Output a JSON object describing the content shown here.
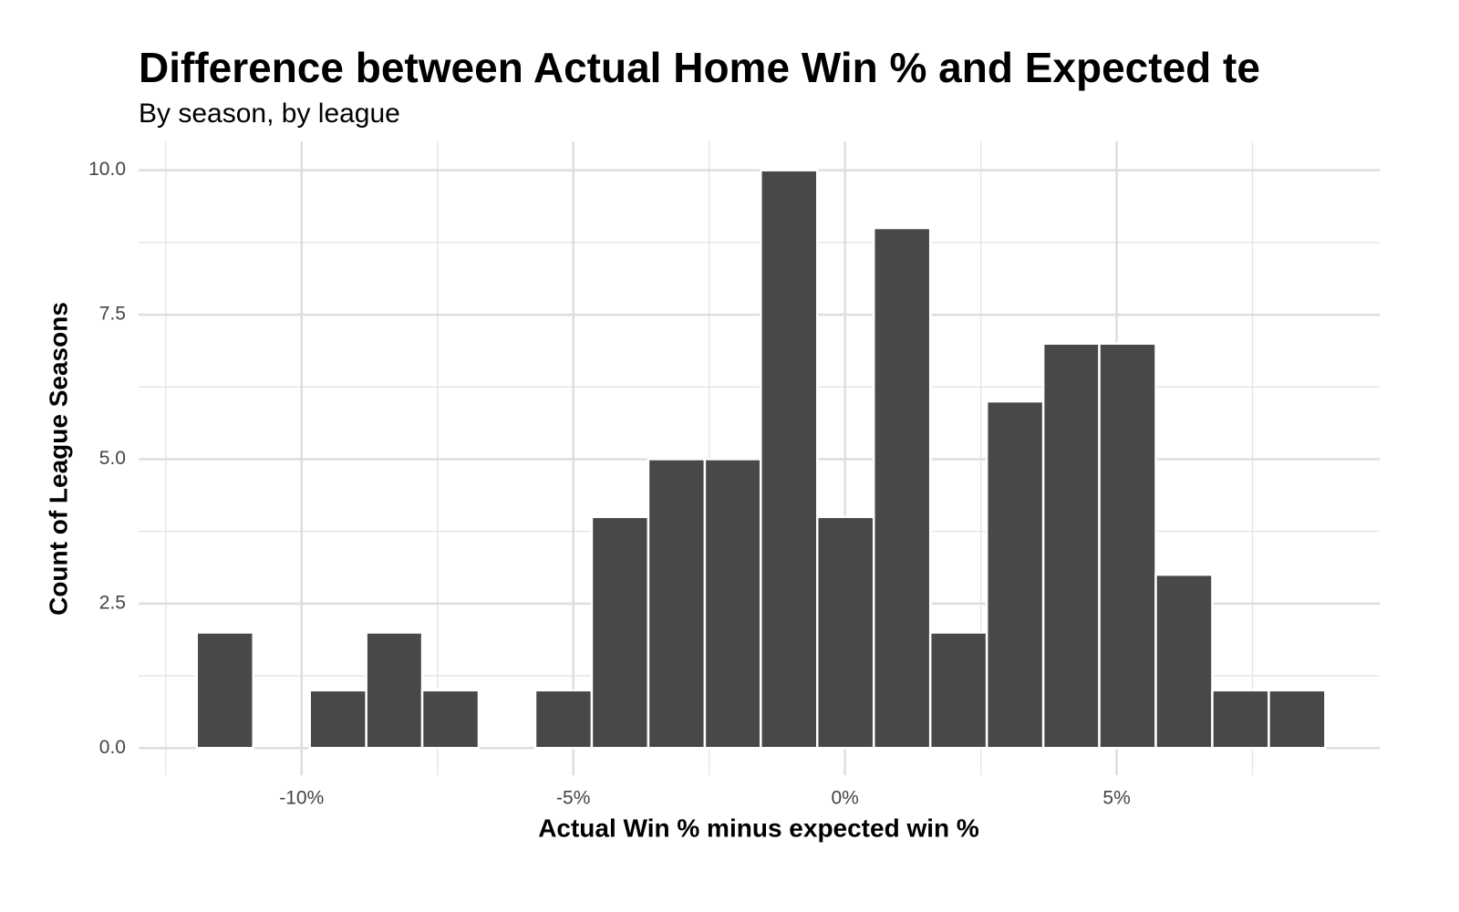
{
  "chart_data": {
    "type": "histogram",
    "title": "Difference between Actual Home Win % and Expected te",
    "subtitle": "By season, by league",
    "x_label": "Actual Win % minus expected win %",
    "y_label": "Count of League Seasons",
    "bins": [
      -11.93,
      -10.89,
      -9.85,
      -8.81,
      -7.78,
      -6.74,
      -5.7,
      -4.66,
      -3.62,
      -2.58,
      -1.55,
      -0.51,
      0.53,
      1.57,
      2.61,
      3.65,
      4.68,
      5.72,
      6.76,
      7.8,
      8.84
    ],
    "values": [
      2,
      0,
      1,
      2,
      1,
      0,
      1,
      4,
      5,
      5,
      10,
      4,
      9,
      2,
      6,
      7,
      7,
      3,
      1,
      1
    ],
    "color": "#484848",
    "xlim": [
      -13.0,
      9.84
    ],
    "xticks": [
      {
        "value": -10,
        "label": "-10%"
      },
      {
        "value": -5,
        "label": "-5%"
      },
      {
        "value": 0,
        "label": "0%"
      },
      {
        "value": 5,
        "label": "5%"
      }
    ],
    "ylim": [
      -0.47,
      10.5
    ],
    "yticks": [
      {
        "value": 0,
        "label": "0.0"
      },
      2.5,
      {
        "value": 5,
        "label": "5.0"
      },
      7.5,
      {
        "value": 10,
        "label": "10.0"
      }
    ],
    "grid": true
  }
}
